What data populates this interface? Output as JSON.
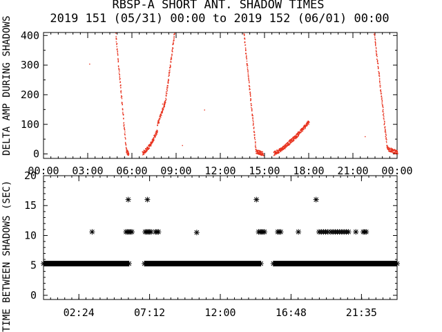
{
  "title_line1": "RBSP-A SHORT ANT. SHADOW TIMES",
  "title_line2": "2019 151 (05/31) 00:00 to 2019 152 (06/01) 00:00",
  "colors": {
    "points": "#e8321e",
    "axes": "#000000",
    "background": "#ffffff"
  },
  "chart_data": [
    {
      "type": "scatter",
      "ylabel": "DELTA AMP DURING SHADOWS",
      "x_unit": "hours",
      "xlim": [
        0,
        24
      ],
      "ylim": [
        -15,
        410
      ],
      "x_tick_labels": [
        "00:00",
        "03:00",
        "06:00",
        "09:00",
        "12:00",
        "15:00",
        "18:00",
        "21:00",
        "00:00"
      ],
      "y_tick_labels": [
        "0",
        "100",
        "200",
        "300",
        "400"
      ],
      "x_ticks": [
        0,
        3,
        6,
        9,
        12,
        15,
        18,
        21,
        24
      ],
      "y_ticks": [
        0,
        100,
        200,
        300,
        400
      ],
      "segments": [
        {
          "x0": 4.85,
          "x1": 5.6,
          "y0": 420,
          "y1": 10
        },
        {
          "x0": 5.6,
          "x1": 5.75,
          "y0": 10,
          "y1": 2
        },
        {
          "x0": 6.7,
          "x1": 7.2,
          "y0": 2,
          "y1": 30
        },
        {
          "x0": 7.2,
          "x1": 7.7,
          "y0": 30,
          "y1": 80
        },
        {
          "x0": 7.7,
          "x1": 8.25,
          "y0": 100,
          "y1": 180
        },
        {
          "x0": 8.25,
          "x1": 8.9,
          "y0": 180,
          "y1": 420
        },
        {
          "x0": 13.55,
          "x1": 14.4,
          "y0": 420,
          "y1": 10
        },
        {
          "x0": 14.4,
          "x1": 14.9,
          "y0": 10,
          "y1": 2
        },
        {
          "x0": 15.6,
          "x1": 16.2,
          "y0": 2,
          "y1": 20
        },
        {
          "x0": 16.2,
          "x1": 17.1,
          "y0": 20,
          "y1": 60
        },
        {
          "x0": 17.1,
          "x1": 18.0,
          "y0": 60,
          "y1": 110
        },
        {
          "x0": 22.4,
          "x1": 23.3,
          "y0": 420,
          "y1": 20
        },
        {
          "x0": 23.3,
          "x1": 24.0,
          "y0": 20,
          "y1": 5
        }
      ],
      "isolated_points": [
        [
          3.1,
          305
        ],
        [
          8.05,
          170
        ],
        [
          9.4,
          30
        ],
        [
          10.9,
          150
        ],
        [
          21.8,
          60
        ]
      ]
    },
    {
      "type": "scatter",
      "ylabel": "TIME BETWEEN SHADOWS (SEC)",
      "x_unit": "hours",
      "xlim": [
        0,
        24
      ],
      "ylim": [
        -0.7,
        20
      ],
      "x_tick_labels": [
        "02:24",
        "07:12",
        "12:00",
        "16:48",
        "21:35"
      ],
      "y_tick_labels": [
        "0",
        "5",
        "10",
        "15",
        "20"
      ],
      "x_ticks": [
        2.4,
        7.2,
        12.0,
        16.8,
        21.58
      ],
      "y_ticks": [
        0,
        5,
        10,
        15,
        20
      ],
      "baseline": {
        "value": 5.3,
        "ranges": [
          [
            0.0,
            5.8
          ],
          [
            6.85,
            14.75
          ],
          [
            15.6,
            24.0
          ]
        ]
      },
      "points": [
        [
          3.3,
          10.6
        ],
        [
          5.75,
          16.0
        ],
        [
          5.6,
          10.6
        ],
        [
          5.7,
          10.6
        ],
        [
          5.8,
          10.6
        ],
        [
          5.9,
          10.6
        ],
        [
          6.0,
          10.6
        ],
        [
          6.9,
          10.6
        ],
        [
          7.0,
          10.6
        ],
        [
          7.1,
          10.6
        ],
        [
          7.2,
          10.6
        ],
        [
          7.3,
          10.6
        ],
        [
          7.05,
          16.0
        ],
        [
          7.6,
          10.6
        ],
        [
          7.7,
          10.6
        ],
        [
          7.8,
          10.6
        ],
        [
          10.4,
          10.5
        ],
        [
          14.45,
          16.0
        ],
        [
          14.6,
          10.6
        ],
        [
          14.7,
          10.6
        ],
        [
          14.8,
          10.6
        ],
        [
          14.9,
          10.6
        ],
        [
          15.0,
          10.6
        ],
        [
          15.9,
          10.6
        ],
        [
          16.0,
          10.6
        ],
        [
          16.1,
          10.6
        ],
        [
          17.3,
          10.6
        ],
        [
          18.5,
          16.0
        ],
        [
          18.7,
          10.6
        ],
        [
          18.85,
          10.6
        ],
        [
          19.0,
          10.6
        ],
        [
          19.15,
          10.6
        ],
        [
          19.3,
          10.6
        ],
        [
          19.5,
          10.6
        ],
        [
          19.65,
          10.6
        ],
        [
          19.8,
          10.6
        ],
        [
          19.95,
          10.6
        ],
        [
          20.1,
          10.6
        ],
        [
          20.25,
          10.6
        ],
        [
          20.4,
          10.6
        ],
        [
          20.55,
          10.6
        ],
        [
          20.7,
          10.6
        ],
        [
          21.2,
          10.6
        ],
        [
          21.7,
          10.6
        ],
        [
          21.8,
          10.6
        ],
        [
          21.9,
          10.6
        ]
      ]
    }
  ]
}
